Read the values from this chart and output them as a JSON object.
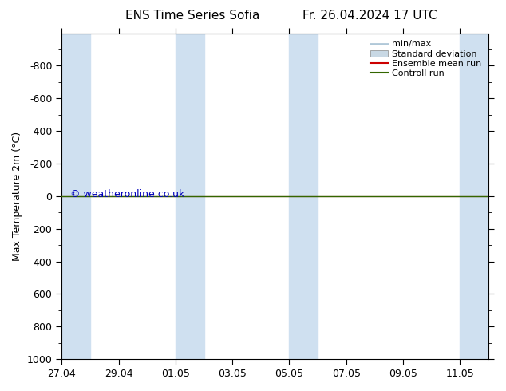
{
  "title_left": "ENS Time Series Sofia",
  "title_right": "Fr. 26.04.2024 17 UTC",
  "ylabel": "Max Temperature 2m (°C)",
  "ylim_bottom": 1000,
  "ylim_top": -1000,
  "yticks": [
    -800,
    -600,
    -400,
    -200,
    0,
    200,
    400,
    600,
    800,
    1000
  ],
  "xlim_start": 0,
  "xlim_end": 15,
  "xtick_labels": [
    "27.04",
    "29.04",
    "01.05",
    "03.05",
    "05.05",
    "07.05",
    "09.05",
    "11.05"
  ],
  "xtick_positions": [
    0,
    2,
    4,
    6,
    8,
    10,
    12,
    14
  ],
  "shaded_bands": [
    [
      0.0,
      0.5
    ],
    [
      0.5,
      1.0
    ],
    [
      4.0,
      4.5
    ],
    [
      4.5,
      5.0
    ],
    [
      8.0,
      8.5
    ],
    [
      8.5,
      9.0
    ],
    [
      14.0,
      15.0
    ]
  ],
  "shaded_color": "#cfe0f0",
  "control_run_y": 0,
  "control_run_color": "#336600",
  "ensemble_mean_color": "#cc0000",
  "minmax_color": "#a8c8d8",
  "stddev_color": "#c8dce8",
  "watermark": "© weatheronline.co.uk",
  "watermark_color": "#0000bb",
  "watermark_fontsize": 9,
  "legend_items": [
    "min/max",
    "Standard deviation",
    "Ensemble mean run",
    "Controll run"
  ],
  "legend_colors": [
    "#b0c8d8",
    "#c8d8e4",
    "#cc0000",
    "#336600"
  ],
  "background_color": "#ffffff",
  "plot_bg_color": "#ffffff",
  "border_color": "#000000",
  "title_fontsize": 11,
  "tick_fontsize": 9,
  "ylabel_fontsize": 9
}
